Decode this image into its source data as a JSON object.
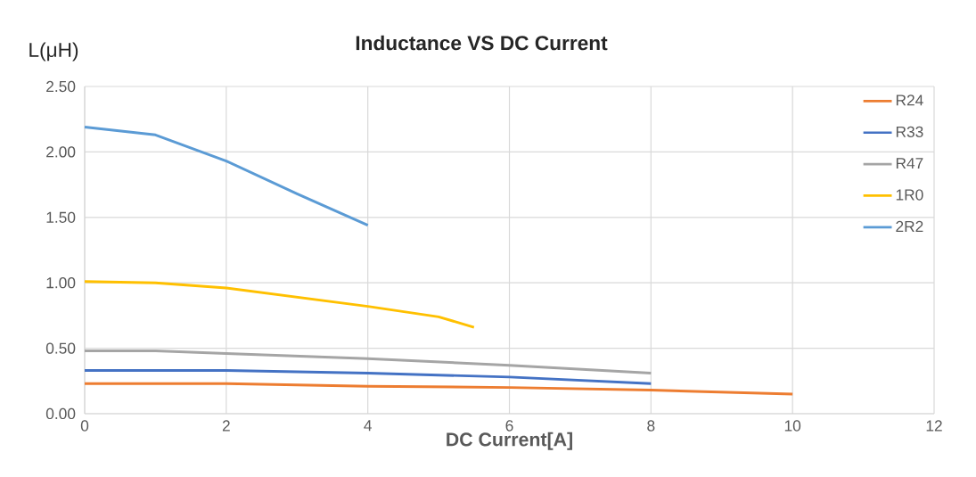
{
  "chart_data": {
    "type": "line",
    "title": "Inductance VS  DC Current",
    "xlabel": "DC Current[A]",
    "ylabel": "L(μH)",
    "series": [
      {
        "name": "R24",
        "color": "#ed7d31",
        "x": [
          0,
          2,
          4,
          6,
          8,
          10
        ],
        "values": [
          0.23,
          0.23,
          0.21,
          0.2,
          0.18,
          0.15
        ]
      },
      {
        "name": "R33",
        "color": "#4472c4",
        "x": [
          0,
          2,
          4,
          6,
          8
        ],
        "values": [
          0.33,
          0.33,
          0.31,
          0.28,
          0.23
        ]
      },
      {
        "name": "R47",
        "color": "#a5a5a5",
        "x": [
          0,
          1,
          2,
          4,
          6,
          8
        ],
        "values": [
          0.48,
          0.48,
          0.46,
          0.42,
          0.37,
          0.31
        ]
      },
      {
        "name": "1R0",
        "color": "#ffc000",
        "x": [
          0,
          1,
          2,
          3,
          4,
          5,
          5.5
        ],
        "values": [
          1.01,
          1.0,
          0.96,
          0.89,
          0.82,
          0.74,
          0.66
        ]
      },
      {
        "name": "2R2",
        "color": "#5b9bd5",
        "x": [
          0,
          1,
          2,
          3,
          4
        ],
        "values": [
          2.19,
          2.13,
          1.93,
          1.68,
          1.44
        ]
      }
    ],
    "xlim": [
      0,
      12
    ],
    "xticks": [
      0,
      2,
      4,
      6,
      8,
      10,
      12
    ],
    "ylim": [
      0,
      2.5
    ],
    "yticks": [
      {
        "value": 0,
        "label": "0.00"
      },
      {
        "value": 0.5,
        "label": "0.50"
      },
      {
        "value": 1,
        "label": "1.00"
      },
      {
        "value": 1.5,
        "label": "1.50"
      },
      {
        "value": 2,
        "label": "2.00"
      },
      {
        "value": 2.5,
        "label": "2.50"
      }
    ],
    "grid": true,
    "legend": "top right",
    "marker": "none",
    "line_style": "solid"
  }
}
